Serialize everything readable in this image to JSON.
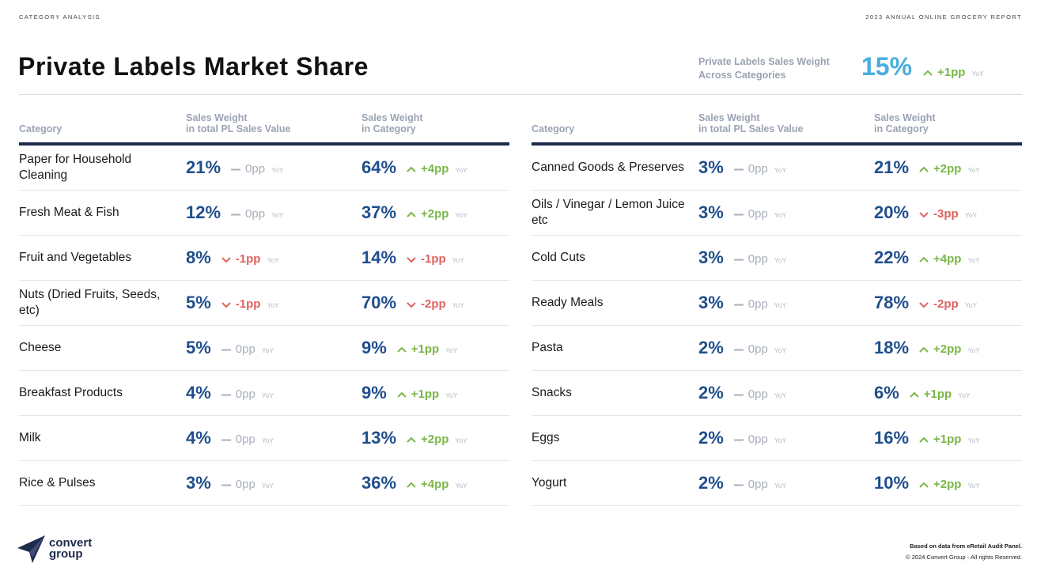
{
  "kicker": "CATEGORY ANALYSIS",
  "report": "2023 ANNUAL ONLINE GROCERY REPORT",
  "title": "Private Labels Market Share",
  "summary": {
    "label_line1": "Private Labels Sales Weight",
    "label_line2": "Across Categories",
    "value": "15%",
    "change": "+1pp",
    "yoy": "YoY"
  },
  "columns": {
    "category": "Category",
    "total_line1": "Sales Weight",
    "total_line2": "in total PL Sales Value",
    "cat_line1": "Sales Weight",
    "cat_line2": "in Category"
  },
  "colors": {
    "up": "#7ab648",
    "down": "#e0625d",
    "flat": "#a9afbb",
    "value": "#1f4e8c",
    "accent": "#4aaee0",
    "rule": "#1f2b4d"
  },
  "left_rows": [
    {
      "name": "Paper for Household Cleaning",
      "total": "21%",
      "total_change": "0pp",
      "total_dir": "flat",
      "cat": "64%",
      "cat_change": "+4pp",
      "cat_dir": "up"
    },
    {
      "name": "Fresh Meat & Fish",
      "total": "12%",
      "total_change": "0pp",
      "total_dir": "flat",
      "cat": "37%",
      "cat_change": "+2pp",
      "cat_dir": "up"
    },
    {
      "name": "Fruit and Vegetables",
      "total": "8%",
      "total_change": "-1pp",
      "total_dir": "down",
      "cat": "14%",
      "cat_change": "-1pp",
      "cat_dir": "down"
    },
    {
      "name": "Nuts (Dried Fruits, Seeds, etc)",
      "total": "5%",
      "total_change": "-1pp",
      "total_dir": "down",
      "cat": "70%",
      "cat_change": "-2pp",
      "cat_dir": "down"
    },
    {
      "name": "Cheese",
      "total": "5%",
      "total_change": "0pp",
      "total_dir": "flat",
      "cat": "9%",
      "cat_change": "+1pp",
      "cat_dir": "up"
    },
    {
      "name": "Breakfast Products",
      "total": "4%",
      "total_change": "0pp",
      "total_dir": "flat",
      "cat": "9%",
      "cat_change": "+1pp",
      "cat_dir": "up"
    },
    {
      "name": "Milk",
      "total": "4%",
      "total_change": "0pp",
      "total_dir": "flat",
      "cat": "13%",
      "cat_change": "+2pp",
      "cat_dir": "up"
    },
    {
      "name": "Rice & Pulses",
      "total": "3%",
      "total_change": "0pp",
      "total_dir": "flat",
      "cat": "36%",
      "cat_change": "+4pp",
      "cat_dir": "up"
    }
  ],
  "right_rows": [
    {
      "name": "Canned Goods & Preserves",
      "total": "3%",
      "total_change": "0pp",
      "total_dir": "flat",
      "cat": "21%",
      "cat_change": "+2pp",
      "cat_dir": "up"
    },
    {
      "name": "Oils / Vinegar / Lemon Juice etc",
      "total": "3%",
      "total_change": "0pp",
      "total_dir": "flat",
      "cat": "20%",
      "cat_change": "-3pp",
      "cat_dir": "down"
    },
    {
      "name": "Cold Cuts",
      "total": "3%",
      "total_change": "0pp",
      "total_dir": "flat",
      "cat": "22%",
      "cat_change": "+4pp",
      "cat_dir": "up"
    },
    {
      "name": "Ready Meals",
      "total": "3%",
      "total_change": "0pp",
      "total_dir": "flat",
      "cat": "78%",
      "cat_change": "-2pp",
      "cat_dir": "down"
    },
    {
      "name": "Pasta",
      "total": "2%",
      "total_change": "0pp",
      "total_dir": "flat",
      "cat": "18%",
      "cat_change": "+2pp",
      "cat_dir": "up"
    },
    {
      "name": "Snacks",
      "total": "2%",
      "total_change": "0pp",
      "total_dir": "flat",
      "cat": "6%",
      "cat_change": "+1pp",
      "cat_dir": "up"
    },
    {
      "name": "Eggs",
      "total": "2%",
      "total_change": "0pp",
      "total_dir": "flat",
      "cat": "16%",
      "cat_change": "+1pp",
      "cat_dir": "up"
    },
    {
      "name": "Yogurt",
      "total": "2%",
      "total_change": "0pp",
      "total_dir": "flat",
      "cat": "10%",
      "cat_change": "+2pp",
      "cat_dir": "up"
    }
  ],
  "yoy_label": "YoY",
  "logo": {
    "line1": "convert",
    "line2": "group"
  },
  "footer": {
    "source": "Based on data from eRetail Audit Panel.",
    "copyright": "© 2024 Convert Group - All rights Reserved."
  }
}
